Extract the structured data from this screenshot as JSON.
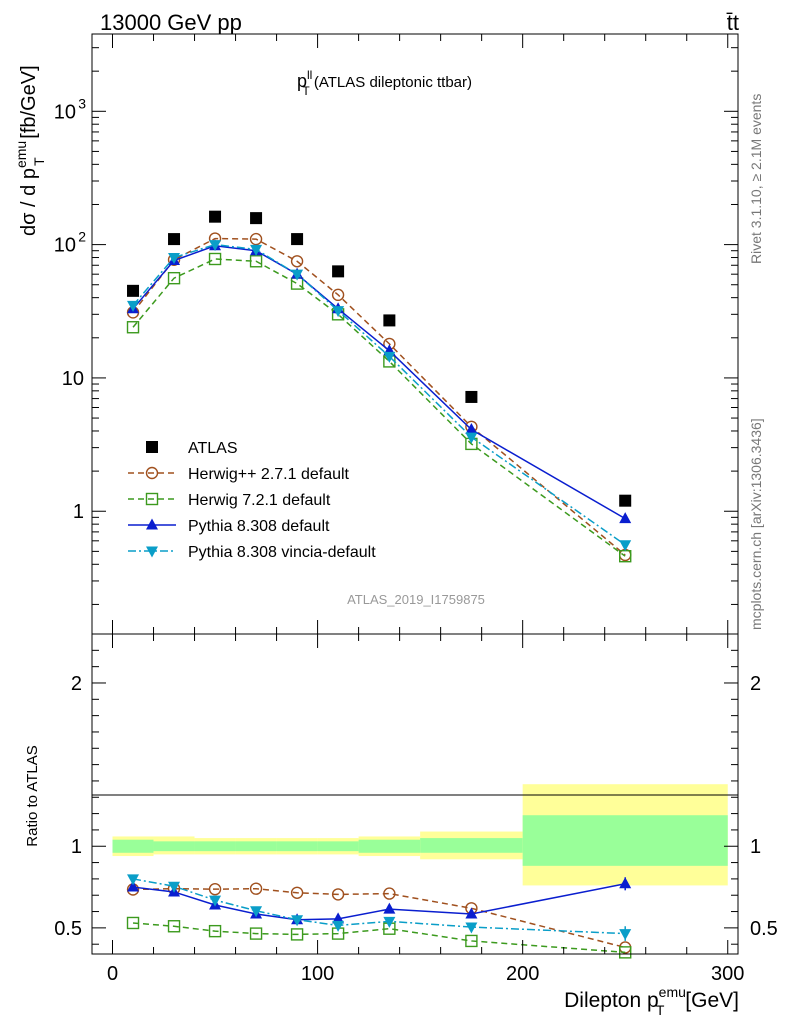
{
  "header": {
    "left": "13000 GeV pp",
    "right": "t̄t"
  },
  "side_labels": {
    "rivet": "Rivet 3.1.10, ≥ 2.1M events",
    "mcplots": "mcplots.cern.ch [arXiv:1306.3436]"
  },
  "chart_data": [
    {
      "type": "scatter",
      "title": "p",
      "title_sup": "ll",
      "title_sub": "T",
      "title_suffix": " (ATLAS dileptonic ttbar)",
      "watermark": "ATLAS_2019_I1759875",
      "ylabel": "dσ / d p",
      "ylabel_sub": "T",
      "ylabel_sup": "emu",
      "ylabel_unit": " [fb/GeV]",
      "yscale": "log",
      "xlim": [
        -10,
        305
      ],
      "ylim": [
        0.12,
        3800
      ],
      "yticks": [
        {
          "value": 1,
          "label": "1"
        },
        {
          "value": 10,
          "label": "10"
        },
        {
          "value": 100,
          "label": "10",
          "sup": "2"
        },
        {
          "value": 1000,
          "label": "10",
          "sup": "3"
        }
      ],
      "legend_position": "lower-left",
      "series": [
        {
          "name": "ATLAS",
          "style": "data",
          "x": [
            10,
            30,
            50,
            70,
            90,
            110,
            135,
            175,
            250
          ],
          "y": [
            45,
            110,
            162,
            158,
            110,
            63,
            27,
            7.2,
            1.2
          ]
        },
        {
          "name": "Herwig++ 2.7.1 default",
          "style": "herwig271",
          "x": [
            10,
            30,
            50,
            70,
            90,
            110,
            135,
            175,
            250
          ],
          "y": [
            31,
            77,
            111,
            110,
            75,
            42,
            18,
            4.3,
            0.47
          ]
        },
        {
          "name": "Herwig 7.2.1 default",
          "style": "herwig721",
          "x": [
            10,
            30,
            50,
            70,
            90,
            110,
            135,
            175,
            250
          ],
          "y": [
            24,
            56,
            78,
            75,
            51,
            30,
            13.3,
            3.2,
            0.46
          ]
        },
        {
          "name": "Pythia 8.308 default",
          "style": "pythia",
          "x": [
            10,
            30,
            50,
            70,
            90,
            110,
            135,
            175,
            250
          ],
          "y": [
            33,
            76,
            98,
            90,
            60,
            33,
            16,
            4.1,
            0.88
          ]
        },
        {
          "name": "Pythia 8.308 vincia-default",
          "style": "vincia",
          "x": [
            10,
            30,
            50,
            70,
            90,
            110,
            135,
            175,
            250
          ],
          "y": [
            35,
            80,
            100,
            92,
            60,
            32,
            14.5,
            3.6,
            0.56
          ]
        }
      ]
    },
    {
      "type": "scatter",
      "ylabel": "Ratio to ATLAS",
      "xlabel": "Dilepton p",
      "xlabel_sub": "T",
      "xlabel_sup": "emu",
      "xlabel_unit": " [GeV]",
      "xlim": [
        -10,
        305
      ],
      "ylim": [
        0.34,
        2.3
      ],
      "xticks": [
        0,
        100,
        200,
        300
      ],
      "yticks": [
        0.5,
        1,
        2
      ],
      "uncertainty_bands": [
        {
          "x0": 0,
          "x1": 20,
          "inner": [
            0.96,
            1.04
          ],
          "outer": [
            0.94,
            1.06
          ]
        },
        {
          "x0": 20,
          "x1": 40,
          "inner": [
            0.97,
            1.03
          ],
          "outer": [
            0.95,
            1.06
          ]
        },
        {
          "x0": 40,
          "x1": 60,
          "inner": [
            0.97,
            1.03
          ],
          "outer": [
            0.95,
            1.05
          ]
        },
        {
          "x0": 60,
          "x1": 80,
          "inner": [
            0.97,
            1.03
          ],
          "outer": [
            0.95,
            1.05
          ]
        },
        {
          "x0": 80,
          "x1": 100,
          "inner": [
            0.97,
            1.03
          ],
          "outer": [
            0.95,
            1.05
          ]
        },
        {
          "x0": 100,
          "x1": 120,
          "inner": [
            0.97,
            1.03
          ],
          "outer": [
            0.95,
            1.05
          ]
        },
        {
          "x0": 120,
          "x1": 150,
          "inner": [
            0.96,
            1.04
          ],
          "outer": [
            0.94,
            1.06
          ]
        },
        {
          "x0": 150,
          "x1": 200,
          "inner": [
            0.96,
            1.05
          ],
          "outer": [
            0.92,
            1.09
          ]
        },
        {
          "x0": 200,
          "x1": 300,
          "inner": [
            0.88,
            1.19
          ],
          "outer": [
            0.76,
            1.38
          ]
        }
      ],
      "series": [
        {
          "name": "Herwig++ 2.7.1 default",
          "style": "herwig271",
          "x": [
            10,
            30,
            50,
            70,
            90,
            110,
            135,
            175,
            250
          ],
          "y": [
            0.735,
            0.74,
            0.737,
            0.74,
            0.715,
            0.705,
            0.71,
            0.62,
            0.38
          ]
        },
        {
          "name": "Herwig 7.2.1 default",
          "style": "herwig721",
          "x": [
            10,
            30,
            50,
            70,
            90,
            110,
            135,
            175,
            250
          ],
          "y": [
            0.53,
            0.51,
            0.48,
            0.465,
            0.46,
            0.465,
            0.495,
            0.42,
            0.35
          ]
        },
        {
          "name": "Pythia 8.308 default",
          "style": "pythia",
          "x": [
            10,
            30,
            50,
            70,
            90,
            110,
            135,
            175,
            250
          ],
          "y": [
            0.75,
            0.72,
            0.64,
            0.585,
            0.55,
            0.555,
            0.615,
            0.585,
            0.77
          ],
          "err": [
            0,
            0,
            0,
            0,
            0,
            0,
            0,
            0,
            0.04
          ]
        },
        {
          "name": "Pythia 8.308 vincia-default",
          "style": "vincia",
          "x": [
            10,
            30,
            50,
            70,
            90,
            110,
            135,
            175,
            250
          ],
          "y": [
            0.8,
            0.755,
            0.67,
            0.605,
            0.55,
            0.515,
            0.54,
            0.505,
            0.465
          ],
          "err": [
            0,
            0,
            0,
            0,
            0,
            0,
            0,
            0,
            0.045
          ]
        }
      ]
    }
  ]
}
